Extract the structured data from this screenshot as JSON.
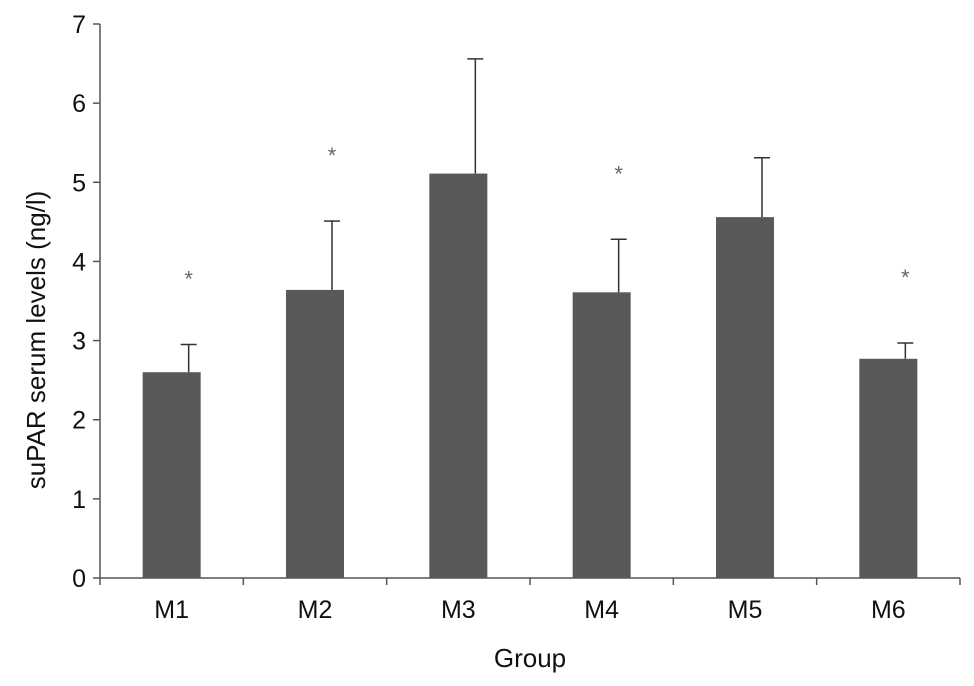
{
  "chart_data": {
    "type": "bar",
    "title": "",
    "xlabel": "Group",
    "ylabel": "suPAR serum levels (ng/l)",
    "categories": [
      "M1",
      "M2",
      "M3",
      "M4",
      "M5",
      "M6"
    ],
    "values": [
      2.6,
      3.64,
      5.11,
      3.61,
      4.56,
      2.77
    ],
    "error_upper": [
      0.35,
      0.87,
      1.45,
      0.67,
      0.75,
      0.2
    ],
    "annotations": [
      "*",
      "*",
      "",
      "*",
      "",
      "*"
    ],
    "yticks": [
      "0",
      "1",
      "2",
      "3",
      "4",
      "5",
      "6",
      "7"
    ],
    "ylim": [
      0,
      7
    ],
    "grid": false,
    "legend": "none",
    "bar_color": "#595959"
  }
}
